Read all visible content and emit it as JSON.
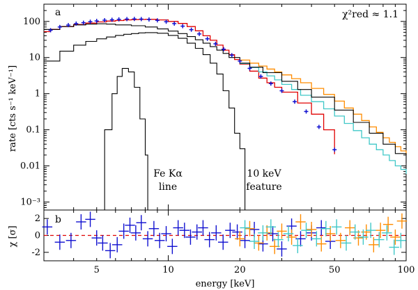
{
  "chart_data": [
    {
      "panel": "a",
      "type": "line",
      "x_scale": "log",
      "y_scale": "log",
      "xlim": [
        3,
        100
      ],
      "ylim": [
        0.0006,
        300
      ],
      "ylabel": "rate [cts s⁻¹ keV⁻¹]",
      "yticks": [
        0.001,
        0.01,
        0.1,
        1,
        10,
        100
      ],
      "ytick_labels": [
        "10⁻³",
        "0.01",
        "0.1",
        "1",
        "10",
        "100"
      ],
      "annotations": {
        "fit_quality": "χ²red ≈ 1.1",
        "fe_line_1": "Fe Kα",
        "fe_line_2": "line",
        "feature_1": "10 keV",
        "feature_2": "feature"
      },
      "colors": {
        "model_total": "#000000",
        "model_components": "#000000",
        "data_blue": "#1010d0",
        "model_red": "#e00000",
        "data_orange": "#ff8c00",
        "model_orange": "#ff8c00",
        "data_cyan": "#40c8c8",
        "model_cyan": "#40c8c8"
      },
      "series": [
        {
          "kind": "model",
          "color": "red",
          "points": [
            [
              3,
              52
            ],
            [
              3.2,
              60
            ],
            [
              3.5,
              72
            ],
            [
              4,
              82
            ],
            [
              4.5,
              90
            ],
            [
              5,
              97
            ],
            [
              5.5,
              102
            ],
            [
              6,
              106
            ],
            [
              6.5,
              110
            ],
            [
              7,
              112
            ],
            [
              7.5,
              113
            ],
            [
              8,
              114
            ],
            [
              9,
              110
            ],
            [
              10,
              100
            ],
            [
              11,
              88
            ],
            [
              12,
              72
            ],
            [
              13,
              55
            ],
            [
              14,
              40
            ],
            [
              15,
              30
            ],
            [
              16,
              22
            ],
            [
              17,
              16
            ],
            [
              18,
              12
            ],
            [
              19,
              8.8
            ],
            [
              20,
              6.6
            ],
            [
              22,
              4.2
            ],
            [
              24,
              2.7
            ],
            [
              26,
              2.0
            ],
            [
              28,
              1.5
            ],
            [
              30,
              1.1
            ],
            [
              35,
              0.55
            ],
            [
              40,
              0.27
            ],
            [
              45,
              0.1
            ],
            [
              50,
              0.021
            ]
          ]
        },
        {
          "kind": "model",
          "color": "orange",
          "points": [
            [
              20,
              8.5
            ],
            [
              22,
              7.0
            ],
            [
              24,
              5.8
            ],
            [
              26,
              4.8
            ],
            [
              28,
              4.0
            ],
            [
              30,
              3.3
            ],
            [
              33,
              2.6
            ],
            [
              36,
              2.0
            ],
            [
              40,
              1.4
            ],
            [
              45,
              0.95
            ],
            [
              50,
              0.62
            ],
            [
              55,
              0.4
            ],
            [
              60,
              0.27
            ],
            [
              65,
              0.18
            ],
            [
              70,
              0.12
            ],
            [
              75,
              0.085
            ],
            [
              80,
              0.06
            ],
            [
              85,
              0.045
            ],
            [
              90,
              0.034
            ],
            [
              95,
              0.026
            ],
            [
              100,
              0.02
            ]
          ]
        },
        {
          "kind": "model",
          "color": "cyan",
          "points": [
            [
              20,
              6.8
            ],
            [
              22,
              5.3
            ],
            [
              24,
              4.0
            ],
            [
              26,
              3.1
            ],
            [
              28,
              2.4
            ],
            [
              30,
              1.8
            ],
            [
              33,
              1.3
            ],
            [
              36,
              0.9
            ],
            [
              40,
              0.6
            ],
            [
              45,
              0.38
            ],
            [
              50,
              0.24
            ],
            [
              55,
              0.15
            ],
            [
              60,
              0.095
            ],
            [
              65,
              0.06
            ],
            [
              70,
              0.04
            ],
            [
              75,
              0.028
            ],
            [
              80,
              0.02
            ],
            [
              85,
              0.014
            ],
            [
              90,
              0.01
            ],
            [
              95,
              0.008
            ],
            [
              100,
              0.006
            ]
          ]
        },
        {
          "kind": "component",
          "name": "",
          "color": "black",
          "points": [
            [
              3,
              60
            ],
            [
              3.5,
              72
            ],
            [
              4,
              80
            ],
            [
              4.5,
              84
            ],
            [
              5,
              86
            ],
            [
              5.5,
              84
            ],
            [
              6,
              80
            ],
            [
              7,
              76
            ],
            [
              8,
              70
            ],
            [
              9,
              62
            ],
            [
              10,
              54
            ],
            [
              11,
              46
            ],
            [
              12,
              38
            ],
            [
              13,
              31
            ],
            [
              14,
              25
            ],
            [
              15,
              20
            ],
            [
              16,
              16
            ],
            [
              17,
              13
            ],
            [
              18,
              10
            ],
            [
              20,
              7
            ],
            [
              22,
              5.4
            ],
            [
              25,
              3.8
            ],
            [
              30,
              2.2
            ],
            [
              35,
              1.3
            ],
            [
              40,
              0.8
            ],
            [
              50,
              0.35
            ],
            [
              60,
              0.16
            ],
            [
              70,
              0.08
            ],
            [
              80,
              0.04
            ],
            [
              90,
              0.022
            ],
            [
              100,
              0.012
            ]
          ]
        },
        {
          "kind": "component",
          "color": "black",
          "points": [
            [
              3,
              8
            ],
            [
              3.5,
              15
            ],
            [
              4,
              22
            ],
            [
              4.5,
              28
            ],
            [
              5,
              33
            ],
            [
              5.5,
              37
            ],
            [
              6,
              41
            ],
            [
              6.5,
              44
            ],
            [
              7,
              46
            ],
            [
              7.5,
              48
            ],
            [
              8,
              49
            ],
            [
              9,
              47
            ],
            [
              10,
              41
            ],
            [
              11,
              34
            ],
            [
              12,
              25
            ],
            [
              13,
              18
            ],
            [
              14,
              12
            ],
            [
              15,
              7
            ],
            [
              16,
              3.5
            ],
            [
              17,
              1.2
            ],
            [
              18,
              0.4
            ],
            [
              19,
              0.08
            ],
            [
              20,
              0.03
            ],
            [
              21,
              0.0006
            ]
          ]
        },
        {
          "kind": "component",
          "color": "black",
          "points": [
            [
              5.0,
              0.0006
            ],
            [
              5.4,
              0.1
            ],
            [
              5.8,
              1
            ],
            [
              6.1,
              3
            ],
            [
              6.4,
              5
            ],
            [
              6.8,
              4
            ],
            [
              7.2,
              1.5
            ],
            [
              7.6,
              0.2
            ],
            [
              8.0,
              0.02
            ],
            [
              8.2,
              0.0006
            ]
          ]
        },
        {
          "kind": "data",
          "color": "blue",
          "x": [
            3.2,
            3.5,
            3.8,
            4.1,
            4.4,
            4.7,
            5.0,
            5.4,
            5.8,
            6.2,
            6.7,
            7.2,
            7.7,
            8.3,
            9,
            9.8,
            10.6,
            11.5,
            12.5,
            13.5,
            14.6,
            15.8,
            17.1,
            18.5,
            20,
            22,
            24.5,
            27,
            30,
            34,
            38,
            43,
            50
          ],
          "y": [
            57,
            70,
            79,
            87,
            92,
            98,
            103,
            108,
            111,
            114,
            116,
            117,
            116,
            113,
            107,
            98,
            87,
            74,
            59,
            45,
            33,
            24,
            17,
            11.6,
            8.0,
            5.0,
            3.0,
            1.9,
            1.2,
            0.6,
            0.32,
            0.12,
            0.028
          ]
        }
      ]
    },
    {
      "panel": "b",
      "type": "scatter",
      "x_scale": "log",
      "xlim": [
        3,
        100
      ],
      "ylim": [
        -3,
        3
      ],
      "xlabel": "energy [keV]",
      "ylabel": "χ [σ]",
      "xticks": [
        5,
        10,
        20,
        50,
        100
      ],
      "yticks": [
        -2,
        0,
        2
      ],
      "zero_line_color": "#e00000",
      "series": [
        {
          "color": "blue",
          "x": [
            3.1,
            3.5,
            3.9,
            4.3,
            4.7,
            5.0,
            5.3,
            5.7,
            6.1,
            6.5,
            6.9,
            7.3,
            7.7,
            8.2,
            8.7,
            9.2,
            9.8,
            10.4,
            11,
            11.7,
            12.4,
            13.2,
            14,
            14.9,
            15.9,
            17,
            18.2,
            19.5,
            21,
            23,
            25,
            27.5,
            30,
            33,
            36,
            40,
            44,
            48
          ],
          "y": [
            1.0,
            -0.8,
            -0.6,
            1.6,
            1.9,
            -0.3,
            -0.9,
            -1.8,
            -1.1,
            0.5,
            1.2,
            0.3,
            1.5,
            -0.4,
            0.8,
            -0.6,
            0.2,
            -1.3,
            0.9,
            0.6,
            -0.2,
            0.4,
            0.9,
            -0.5,
            0.3,
            -0.8,
            0.6,
            0.4,
            -0.6,
            0.7,
            -1.0,
            0.2,
            -1.6,
            1.1,
            -0.4,
            0.3,
            0.9,
            -0.7
          ]
        },
        {
          "color": "orange",
          "x": [
            20,
            22,
            24,
            26,
            28,
            30,
            33,
            36,
            40,
            44,
            48,
            53,
            58,
            63,
            68,
            73,
            78,
            84,
            90,
            96
          ],
          "y": [
            -0.4,
            0.8,
            -0.9,
            0.3,
            -1.3,
            0.5,
            -0.2,
            1.6,
            0.7,
            -1.0,
            0.2,
            -0.6,
            0.9,
            -0.3,
            0.4,
            -1.1,
            0.6,
            1.3,
            -0.2,
            1.7
          ]
        },
        {
          "color": "cyan",
          "x": [
            21,
            23,
            25,
            27,
            29,
            32,
            35,
            38,
            42,
            46,
            51,
            56,
            61,
            66,
            71,
            77,
            83,
            89,
            95
          ],
          "y": [
            0.9,
            -0.7,
            0.3,
            1.0,
            -0.5,
            0.2,
            -1.2,
            0.6,
            -0.4,
            0.8,
            1.0,
            -0.9,
            0.4,
            -0.2,
            0.6,
            -0.5,
            0.3,
            -1.4,
            -0.6
          ]
        }
      ]
    }
  ]
}
